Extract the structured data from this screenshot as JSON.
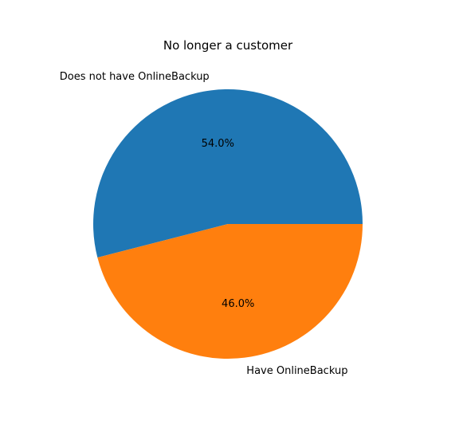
{
  "chart_data": {
    "type": "pie",
    "title": "No longer a customer",
    "slices": [
      {
        "label": "Does not have OnlineBackup",
        "value": 54.0,
        "pct_label": "54.0%",
        "color": "#1f77b4"
      },
      {
        "label": "Have OnlineBackup",
        "value": 46.0,
        "pct_label": "46.0%",
        "color": "#ff7f0e"
      }
    ],
    "start_angle_deg": 0,
    "direction": "counterclockwise",
    "legend": "none"
  }
}
